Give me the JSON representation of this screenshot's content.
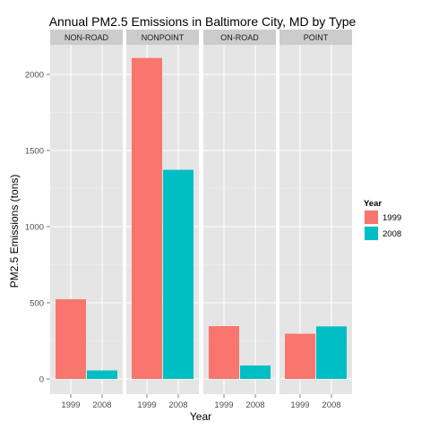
{
  "chart_data": {
    "type": "bar",
    "title": "Annual PM2.5 Emissions in Baltimore City, MD by Type",
    "xlabel": "Year",
    "ylabel": "PM2.5 Emissions (tons)",
    "ylim": [
      0,
      2250
    ],
    "yticks": [
      0,
      500,
      1000,
      1500,
      2000
    ],
    "grid": true,
    "legend": {
      "title": "Year",
      "position": "right"
    },
    "categories": [
      "1999",
      "2008"
    ],
    "panels": [
      {
        "name": "NON-ROAD",
        "values": [
          522.94,
          55.82
        ]
      },
      {
        "name": "NONPOINT",
        "values": [
          2107.625,
          1373.207
        ]
      },
      {
        "name": "ON-ROAD",
        "values": [
          346.82,
          88.28
        ]
      },
      {
        "name": "POINT",
        "values": [
          296.795,
          344.975
        ]
      }
    ],
    "series": [
      {
        "name": "1999",
        "color": "#F8766D"
      },
      {
        "name": "2008",
        "color": "#00BFC4"
      }
    ]
  }
}
